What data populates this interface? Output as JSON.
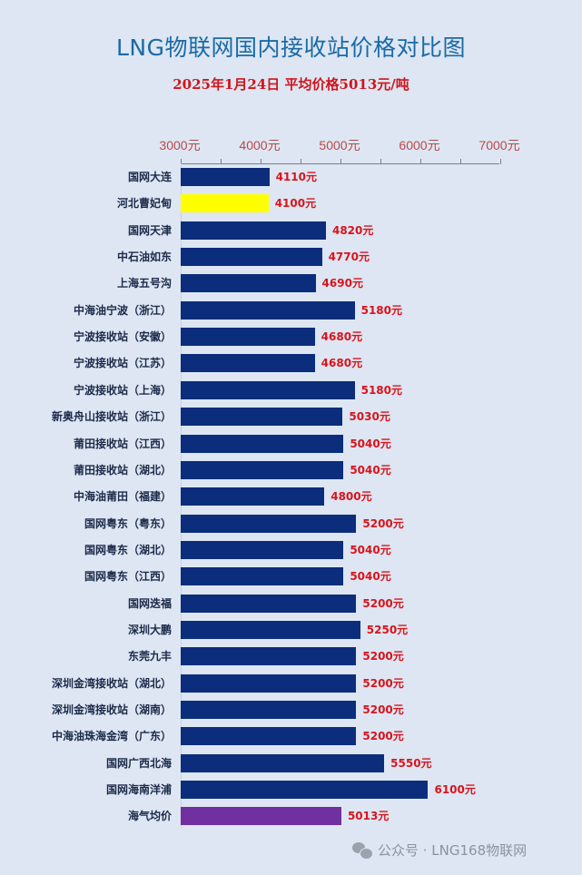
{
  "header": {
    "title": "LNG物联网国内接收站价格对比图",
    "subtitle": "2025年1月24日 平均价格5013元/吨"
  },
  "watermark": {
    "text": "公众号 · LNG168物联网",
    "icon": "wechat-icon"
  },
  "colors": {
    "background": "#dde6f2",
    "title": "#1a6aa6",
    "subtitle": "#d0141c",
    "bar_default": "#0b2d7c",
    "bar_highlight": "#ffff00",
    "bar_average": "#7030a0",
    "value_label": "#d8141c",
    "tick_label": "#b84a4a"
  },
  "chart_data": {
    "type": "bar",
    "orientation": "horizontal",
    "title": "LNG物联网国内接收站价格对比图",
    "subtitle": "2025年1月24日 平均价格5013元/吨",
    "xlabel": "",
    "ylabel": "",
    "xlim": [
      3000,
      7000
    ],
    "axis_position": "top",
    "x_ticks": [
      "3000元",
      "4000元",
      "5000元",
      "6000元",
      "7000元"
    ],
    "grid": false,
    "legend": null,
    "unit": "元",
    "categories": [
      "国网大连",
      "河北曹妃甸",
      "国网天津",
      "中石油如东",
      "上海五号沟",
      "中海油宁波（浙江）",
      "宁波接收站（安徽）",
      "宁波接收站（江苏）",
      "宁波接收站（上海）",
      "新奥舟山接收站（浙江）",
      "莆田接收站（江西）",
      "莆田接收站（湖北）",
      "中海油莆田（福建）",
      "国网粤东（粤东）",
      "国网粤东（湖北）",
      "国网粤东（江西）",
      "国网迭福",
      "深圳大鹏",
      "东莞九丰",
      "深圳金湾接收站（湖北）",
      "深圳金湾接收站（湖南）",
      "中海油珠海金湾（广东）",
      "国网广西北海",
      "国网海南洋浦",
      "海气均价"
    ],
    "values": [
      4110,
      4100,
      4820,
      4770,
      4690,
      5180,
      4680,
      4680,
      5180,
      5030,
      5040,
      5040,
      4800,
      5200,
      5040,
      5040,
      5200,
      5250,
      5200,
      5200,
      5200,
      5200,
      5550,
      6100,
      5013
    ],
    "value_labels": [
      "4110元",
      "4100元",
      "4820元",
      "4770元",
      "4690元",
      "5180元",
      "4680元",
      "4680元",
      "5180元",
      "5030元",
      "5040元",
      "5040元",
      "4800元",
      "5200元",
      "5040元",
      "5040元",
      "5200元",
      "5250元",
      "5200元",
      "5200元",
      "5200元",
      "5200元",
      "5550元",
      "6100元",
      "5013元"
    ],
    "bar_colors": [
      "#0b2d7c",
      "#ffff00",
      "#0b2d7c",
      "#0b2d7c",
      "#0b2d7c",
      "#0b2d7c",
      "#0b2d7c",
      "#0b2d7c",
      "#0b2d7c",
      "#0b2d7c",
      "#0b2d7c",
      "#0b2d7c",
      "#0b2d7c",
      "#0b2d7c",
      "#0b2d7c",
      "#0b2d7c",
      "#0b2d7c",
      "#0b2d7c",
      "#0b2d7c",
      "#0b2d7c",
      "#0b2d7c",
      "#0b2d7c",
      "#0b2d7c",
      "#0b2d7c",
      "#7030a0"
    ]
  }
}
